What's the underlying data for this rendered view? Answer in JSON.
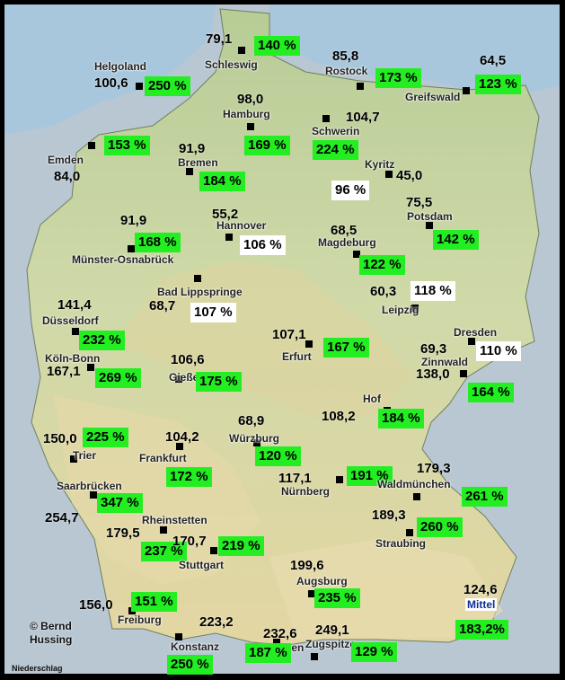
{
  "stations": [
    {
      "city": "Schleswig",
      "value": "79,1",
      "pct": "140 %",
      "pct_bg": "green"
    },
    {
      "city": "Rostock",
      "value": "85,8",
      "pct": "173 %",
      "pct_bg": "green"
    },
    {
      "city": "Greifswald",
      "value": "64,5",
      "pct": "123 %",
      "pct_bg": "green"
    },
    {
      "city": "Helgoland",
      "value": "100,6",
      "pct": "250 %",
      "pct_bg": "green"
    },
    {
      "city": "Hamburg",
      "value": "98,0",
      "pct": "169 %",
      "pct_bg": "green"
    },
    {
      "city": "Schwerin",
      "value": "104,7",
      "pct": "224 %",
      "pct_bg": "green"
    },
    {
      "city": "Emden",
      "value": "84,0",
      "pct": "153 %",
      "pct_bg": "green"
    },
    {
      "city": "Bremen",
      "value": "91,9",
      "pct": "184 %",
      "pct_bg": "green"
    },
    {
      "city": "Kyritz",
      "value": "45,0",
      "pct": "96 %",
      "pct_bg": "white"
    },
    {
      "city": "Potsdam",
      "value": "75,5",
      "pct": "142 %",
      "pct_bg": "green"
    },
    {
      "city": "Hannover",
      "value": "55,2",
      "pct": "106 %",
      "pct_bg": "white"
    },
    {
      "city": "Münster-Osnabrück",
      "value": "91,9",
      "pct": "168 %",
      "pct_bg": "green"
    },
    {
      "city": "Magdeburg",
      "value": "68,5",
      "pct": "122 %",
      "pct_bg": "green"
    },
    {
      "city": "Bad Lippspringe",
      "value": "68,7",
      "pct": "107 %",
      "pct_bg": "white"
    },
    {
      "city": "Leipzig",
      "value": "60,3",
      "pct": "118 %",
      "pct_bg": "white"
    },
    {
      "city": "Düsseldorf",
      "value": "141,4",
      "pct": "232 %",
      "pct_bg": "green"
    },
    {
      "city": "Erfurt",
      "value": "107,1",
      "pct": "167 %",
      "pct_bg": "green"
    },
    {
      "city": "Dresden",
      "value": "69,3",
      "pct": "110 %",
      "pct_bg": "white"
    },
    {
      "city": "Köln-Bonn",
      "value": "167,1",
      "pct": "269 %",
      "pct_bg": "green"
    },
    {
      "city": "Gießen",
      "value": "106,6",
      "pct": "175 %",
      "pct_bg": "green"
    },
    {
      "city": "Zinnwald",
      "value": "138,0",
      "pct": "164 %",
      "pct_bg": "green"
    },
    {
      "city": "Hof",
      "value": "108,2",
      "pct": "184 %",
      "pct_bg": "green"
    },
    {
      "city": "Trier",
      "value": "150,0",
      "pct": "225 %",
      "pct_bg": "green"
    },
    {
      "city": "Frankfurt",
      "value": "104,2",
      "pct": "172 %",
      "pct_bg": "green"
    },
    {
      "city": "Würzburg",
      "value": "68,9",
      "pct": "120 %",
      "pct_bg": "green"
    },
    {
      "city": "Nürnberg",
      "value": "117,1",
      "pct": "191 %",
      "pct_bg": "green"
    },
    {
      "city": "Waldmünchen",
      "value": "179,3",
      "pct": "261 %",
      "pct_bg": "green"
    },
    {
      "city": "Saarbrücken",
      "value": "254,7",
      "pct": "347 %",
      "pct_bg": "green"
    },
    {
      "city": "Rheinstetten",
      "value": "179,5",
      "pct": "237 %",
      "pct_bg": "green"
    },
    {
      "city": "Stuttgart",
      "value": "170,7",
      "pct": "219 %",
      "pct_bg": "green"
    },
    {
      "city": "Straubing",
      "value": "189,3",
      "pct": "260 %",
      "pct_bg": "green"
    },
    {
      "city": "Augsburg",
      "value": "199,6",
      "pct": "235 %",
      "pct_bg": "green"
    },
    {
      "city": "Freiburg",
      "value": "156,0",
      "pct": "151 %",
      "pct_bg": "green"
    },
    {
      "city": "Kempten",
      "value": "232,6",
      "pct": "187 %",
      "pct_bg": "green"
    },
    {
      "city": "Konstanz",
      "value": "223,2",
      "pct": "250 %",
      "pct_bg": "green"
    },
    {
      "city": "Zugspitze",
      "value": "249,1",
      "pct": "129 %",
      "pct_bg": "green"
    }
  ],
  "mittel": {
    "label": "Mittel",
    "value": "124,6",
    "pct": "183,2%",
    "pct_bg": "green"
  },
  "credit": {
    "line1": "© Bernd",
    "line2": "Hussing"
  },
  "footer_label": "Niederschlag",
  "colors": {
    "green": "#22ee22",
    "white": "#ffffff",
    "land": "#c9d6a3",
    "sea": "#a8c8dd",
    "highland": "#e2d9a8",
    "neighbour": "#b9c5cf"
  }
}
